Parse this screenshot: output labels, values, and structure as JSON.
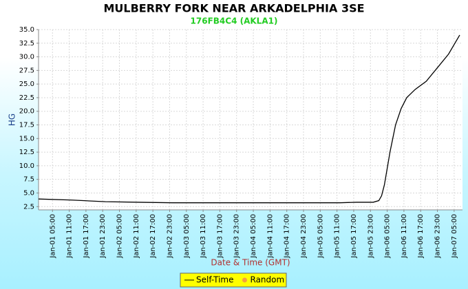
{
  "chart_data": {
    "type": "line",
    "title": "MULBERRY FORK NEAR ARKADELPHIA 3SE",
    "subtitle": "176FB4C4 (AKLA1)",
    "x_label": "Date & Time (GMT)",
    "y_label": "HG",
    "x": [
      "Jan-01 00:00",
      "Jan-01 12:00",
      "Jan-02 00:00",
      "Jan-02 12:00",
      "Jan-03 00:00",
      "Jan-03 12:00",
      "Jan-04 00:00",
      "Jan-04 12:00",
      "Jan-05 00:00",
      "Jan-05 12:00",
      "Jan-05 18:00",
      "Jan-06 00:00",
      "Jan-06 02:00",
      "Jan-06 03:00",
      "Jan-06 04:00",
      "Jan-06 05:00",
      "Jan-06 06:00",
      "Jan-06 07:00",
      "Jan-06 08:00",
      "Jan-06 10:00",
      "Jan-06 12:00",
      "Jan-06 15:00",
      "Jan-06 19:00",
      "Jan-06 23:00",
      "Jan-07 03:00",
      "Jan-07 07:00"
    ],
    "series": [
      {
        "name": "Self-Time",
        "color": "#000000",
        "values": [
          3.9,
          3.7,
          3.4,
          3.3,
          3.2,
          3.2,
          3.2,
          3.2,
          3.2,
          3.2,
          3.3,
          3.3,
          3.6,
          4.5,
          6.5,
          9.5,
          12.5,
          15,
          17.5,
          20.5,
          22.5,
          24,
          25.5,
          28,
          30.5,
          34
        ]
      },
      {
        "name": "Random",
        "color": "#f5a040",
        "marker": "dot",
        "values": [
          null,
          null,
          null,
          null,
          null,
          null,
          null,
          null,
          null,
          null,
          null,
          null,
          null,
          null,
          null,
          null,
          null,
          null,
          null,
          null,
          null,
          null,
          null,
          null,
          null,
          null
        ]
      }
    ],
    "xlim": [
      "Jan-01 00:00",
      "Jan-07 08:00"
    ],
    "xticks": [
      "Jan-01 05:00",
      "Jan-01 11:00",
      "Jan-01 17:00",
      "Jan-01 23:00",
      "Jan-02 05:00",
      "Jan-02 11:00",
      "Jan-02 17:00",
      "Jan-02 23:00",
      "Jan-03 05:00",
      "Jan-03 11:00",
      "Jan-03 17:00",
      "Jan-03 23:00",
      "Jan-04 05:00",
      "Jan-04 11:00",
      "Jan-04 17:00",
      "Jan-04 23:00",
      "Jan-05 05:00",
      "Jan-05 11:00",
      "Jan-05 17:00",
      "Jan-05 23:00",
      "Jan-06 05:00",
      "Jan-06 11:00",
      "Jan-06 17:00",
      "Jan-06 23:00",
      "Jan-07 05:00"
    ],
    "ylim": [
      1.9,
      35
    ],
    "yticks": [
      2.5,
      {
        "value": 5,
        "label": "5.0"
      },
      7.5,
      {
        "value": 10,
        "label": "10.0"
      },
      12.5,
      {
        "value": 15,
        "label": "15.0"
      },
      17.5,
      {
        "value": 20,
        "label": "20.0"
      },
      22.5,
      {
        "value": 25,
        "label": "25.0"
      },
      27.5,
      {
        "value": 30,
        "label": "30.0"
      },
      32.5,
      {
        "value": 35,
        "label": "35.0"
      }
    ],
    "grid": true
  }
}
